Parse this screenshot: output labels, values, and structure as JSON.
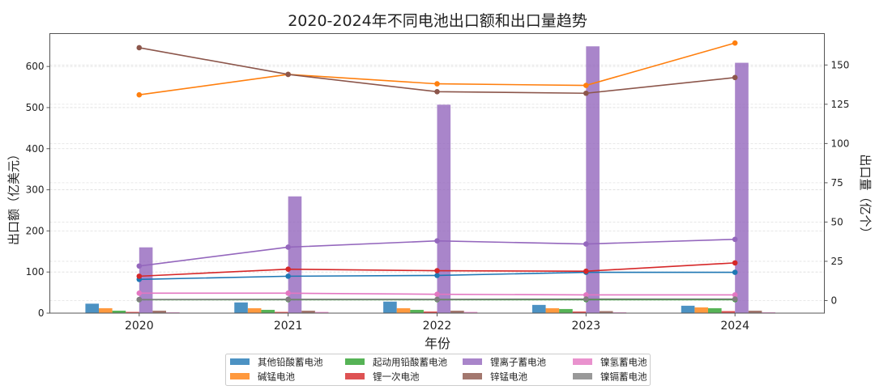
{
  "chart_data": {
    "type": "bar+line",
    "title": "2020-2024年不同电池出口额和出口量趋势",
    "xlabel": "年份",
    "ylabel_left": "出口额（亿美元）",
    "ylabel_right": "出口量（亿个）",
    "categories": [
      "2020",
      "2021",
      "2022",
      "2023",
      "2024"
    ],
    "ylim_left": [
      0,
      680
    ],
    "yticks_left": [
      "0",
      "100",
      "200",
      "300",
      "400",
      "500",
      "600"
    ],
    "ylim_right": [
      -8,
      170
    ],
    "yticks_right": [
      "0",
      "25",
      "50",
      "75",
      "100",
      "125",
      "150"
    ],
    "grid": true,
    "legend_position": "bottom-center",
    "series": [
      {
        "name": "其他铅酸蓄电池",
        "color": "#1f77b4",
        "bar_values": [
          23,
          26,
          28,
          20,
          18
        ],
        "line_values": [
          13.5,
          15.5,
          16,
          18,
          18
        ]
      },
      {
        "name": "碱锰电池",
        "color": "#ff7f0e",
        "bar_values": [
          12,
          12,
          12,
          12,
          14
        ],
        "line_values": [
          131,
          144,
          138,
          137,
          164
        ]
      },
      {
        "name": "起动用铅酸蓄电池",
        "color": "#2ca02c",
        "bar_values": [
          6,
          8,
          8,
          10,
          12
        ],
        "line_values": [
          0.6,
          0.6,
          0.6,
          0.6,
          0.6
        ]
      },
      {
        "name": "锂一次电池",
        "color": "#d62728",
        "bar_values": [
          3,
          3,
          4,
          4,
          5
        ],
        "line_values": [
          15.5,
          20,
          19,
          18.7,
          24
        ]
      },
      {
        "name": "锂离子蓄电池",
        "color": "#9467bd",
        "bar_values": [
          160,
          284,
          507,
          649,
          609
        ],
        "line_values": [
          22,
          34,
          38,
          36,
          39
        ]
      },
      {
        "name": "锌锰电池",
        "color": "#8c564b",
        "bar_values": [
          6,
          6,
          6,
          5,
          6
        ],
        "line_values": [
          161,
          144,
          133,
          132,
          142
        ]
      },
      {
        "name": "镍氢蓄电池",
        "color": "#e377c2",
        "bar_values": [
          2,
          3,
          3,
          2,
          2
        ],
        "line_values": [
          4.7,
          4.7,
          4,
          3.6,
          3.6
        ]
      },
      {
        "name": "镍镉蓄电池",
        "color": "#7f7f7f",
        "bar_values": [
          0.5,
          0.5,
          0.5,
          0.5,
          0.5
        ],
        "line_values": [
          0.7,
          0.8,
          0.8,
          1,
          1
        ]
      }
    ]
  }
}
